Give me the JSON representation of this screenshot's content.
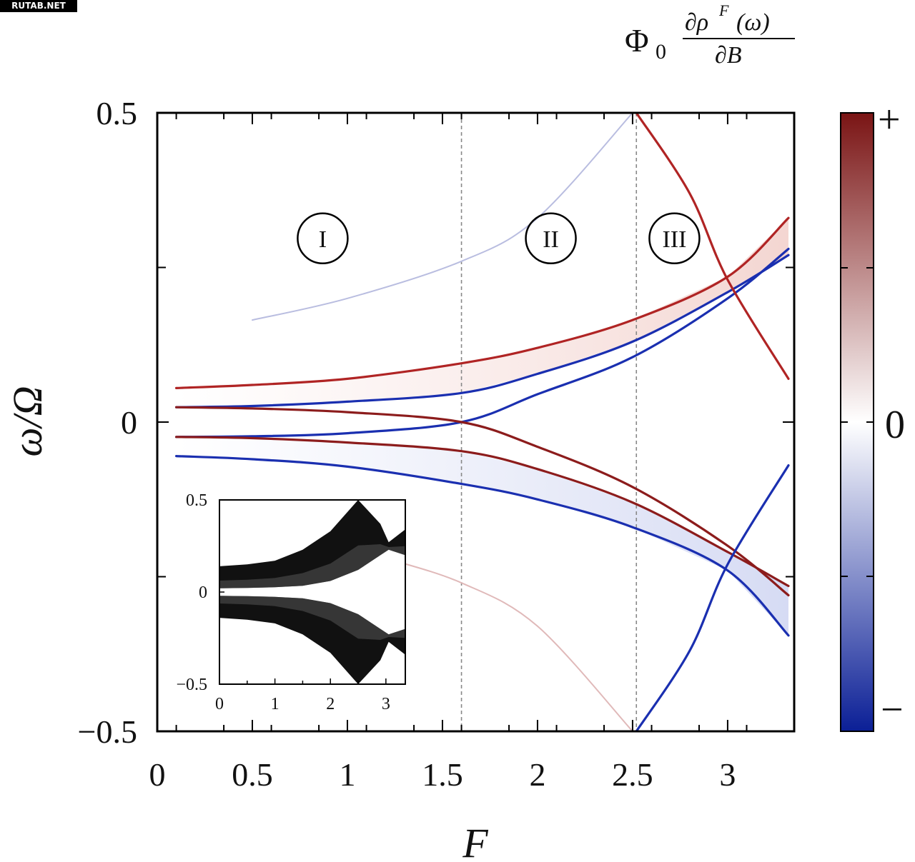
{
  "watermark": "RUTAB.NET",
  "colorbar": {
    "title_main": "Φ",
    "title_sub": "0",
    "title_num": "∂ρ",
    "title_num_sup": "F",
    "title_num_tail": "(ω)",
    "title_den": "∂B",
    "top_label": "+",
    "mid_label": "0",
    "bottom_label": "−",
    "colors": [
      "#0b1f96",
      "#ffffff",
      "#7a1414"
    ]
  },
  "chart_data": {
    "type": "heatmap",
    "xlabel": "F",
    "ylabel": "ω/Ω",
    "xlim": [
      0,
      3.35
    ],
    "ylim": [
      -0.5,
      0.5
    ],
    "x_ticks": [
      {
        "v": 0,
        "label": "0"
      },
      {
        "v": 0.5,
        "label": "0.5"
      },
      {
        "v": 1,
        "label": "1"
      },
      {
        "v": 1.5,
        "label": "1.5"
      },
      {
        "v": 2,
        "label": "2"
      },
      {
        "v": 2.5,
        "label": "2.5"
      },
      {
        "v": 3,
        "label": "3"
      }
    ],
    "y_ticks": [
      {
        "v": 0.5,
        "label": "0.5"
      },
      {
        "v": 0,
        "label": "0"
      },
      {
        "v": -0.5,
        "label": "−0.5"
      }
    ],
    "regions": [
      {
        "label": "I",
        "x": 0.87,
        "y": 0.297
      },
      {
        "label": "II",
        "x": 2.07,
        "y": 0.297
      },
      {
        "label": "III",
        "x": 2.72,
        "y": 0.297
      }
    ],
    "dashed_lines_x": [
      1.6,
      2.52
    ],
    "series": [
      {
        "color": "#1a2fb0",
        "x": [
          0.1,
          0.5,
          1.0,
          1.6,
          2.0,
          2.5,
          3.0,
          3.32
        ],
        "y": [
          0.024,
          0.026,
          0.033,
          0.047,
          0.078,
          0.13,
          0.21,
          0.27
        ]
      },
      {
        "color": "#1a2fb0",
        "x": [
          0.1,
          0.5,
          1.0,
          1.6,
          2.0,
          2.5,
          3.0,
          3.32
        ],
        "y": [
          -0.024,
          -0.023,
          -0.018,
          0.0,
          0.045,
          0.105,
          0.2,
          0.28
        ]
      },
      {
        "color": "#8c1c1c",
        "x": [
          0.1,
          0.5,
          1.0,
          1.6,
          2.0,
          2.5,
          3.0,
          3.32
        ],
        "y": [
          0.024,
          0.022,
          0.016,
          0.0,
          -0.04,
          -0.105,
          -0.2,
          -0.28
        ]
      },
      {
        "color": "#8c1c1c",
        "x": [
          0.1,
          0.5,
          1.0,
          1.6,
          2.0,
          2.5,
          3.0,
          3.32
        ],
        "y": [
          -0.024,
          -0.026,
          -0.033,
          -0.047,
          -0.076,
          -0.13,
          -0.21,
          -0.265
        ]
      },
      {
        "color": "#b02424",
        "x": [
          0.1,
          0.5,
          1.0,
          1.6,
          2.0,
          2.5,
          3.0,
          3.32
        ],
        "y": [
          0.055,
          0.06,
          0.07,
          0.095,
          0.12,
          0.165,
          0.235,
          0.33
        ]
      },
      {
        "color": "#1a2fb0",
        "x": [
          0.1,
          0.5,
          1.0,
          1.6,
          2.0,
          2.5,
          3.0,
          3.32
        ],
        "y": [
          -0.055,
          -0.06,
          -0.072,
          -0.1,
          -0.125,
          -0.17,
          -0.24,
          -0.345
        ]
      },
      {
        "color": "#b9bde0",
        "x": [
          0.5,
          1.0,
          1.6,
          2.0,
          2.5
        ],
        "y": [
          0.165,
          0.2,
          0.26,
          0.33,
          0.5
        ]
      },
      {
        "color": "#e0b9b9",
        "x": [
          1.2,
          1.6,
          2.0,
          2.5
        ],
        "y": [
          -0.22,
          -0.26,
          -0.33,
          -0.5
        ]
      },
      {
        "color": "#b02424",
        "x": [
          2.52,
          2.8,
          3.0,
          3.32
        ],
        "y": [
          0.5,
          0.37,
          0.23,
          0.07
        ]
      },
      {
        "color": "#1a2fb0",
        "x": [
          2.52,
          2.8,
          3.0,
          3.32
        ],
        "y": [
          -0.5,
          -0.37,
          -0.23,
          -0.07
        ]
      }
    ],
    "inset": {
      "type": "area",
      "xlim": [
        0,
        3.35
      ],
      "ylim": [
        -0.5,
        0.5
      ],
      "x_ticks": [
        {
          "v": 0,
          "label": "0"
        },
        {
          "v": 1,
          "label": "1"
        },
        {
          "v": 2,
          "label": "2"
        },
        {
          "v": 3,
          "label": "3"
        }
      ],
      "y_ticks": [
        {
          "v": 0.5,
          "label": "0.5"
        },
        {
          "v": 0,
          "label": "0"
        },
        {
          "v": -0.5,
          "label": "−0.5"
        }
      ],
      "x": [
        0,
        0.5,
        1.0,
        1.5,
        2.0,
        2.5,
        2.9,
        3.05,
        3.35
      ],
      "upper_band_bottom": [
        0.02,
        0.022,
        0.026,
        0.034,
        0.06,
        0.12,
        0.2,
        0.23,
        0.2
      ],
      "upper_band_top": [
        0.14,
        0.15,
        0.17,
        0.23,
        0.33,
        0.5,
        0.37,
        0.27,
        0.34
      ],
      "lower_band_top": [
        -0.02,
        -0.022,
        -0.026,
        -0.034,
        -0.06,
        -0.12,
        -0.2,
        -0.23,
        -0.2
      ],
      "lower_band_bottom": [
        -0.14,
        -0.15,
        -0.17,
        -0.23,
        -0.33,
        -0.5,
        -0.37,
        -0.27,
        -0.34
      ]
    }
  }
}
